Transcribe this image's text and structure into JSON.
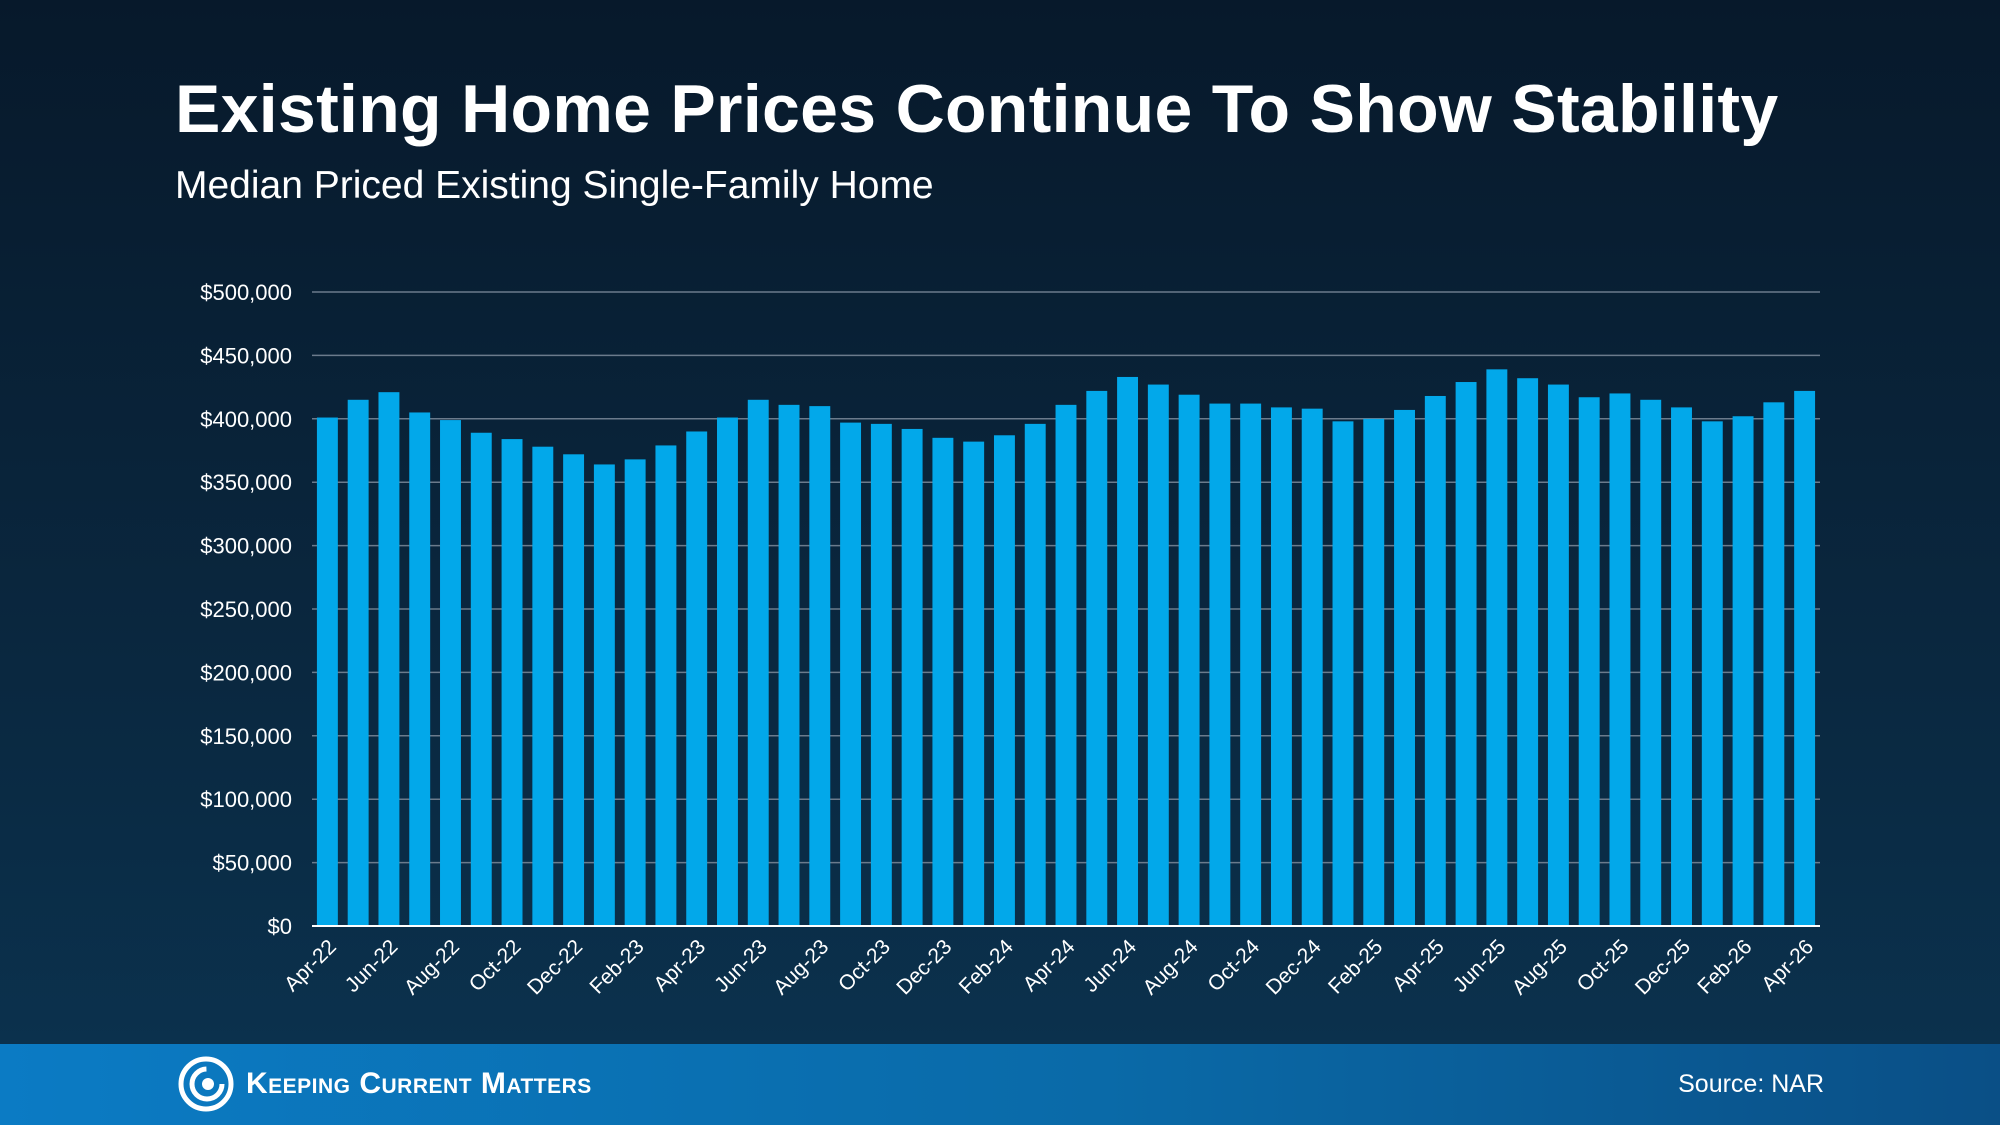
{
  "colors": {
    "bar": "#02a8ea",
    "grid": "#6b7b8c",
    "text": "#ffffff"
  },
  "footer": {
    "logo_text": "Keeping Current Matters",
    "source": "Source: NAR"
  },
  "chart_data": {
    "type": "bar",
    "title": "Existing Home Prices Continue To Show Stability",
    "subtitle": "Median Priced Existing Single-Family Home",
    "xlabel": "",
    "ylabel": "",
    "ylim": [
      0,
      500000
    ],
    "yticks": [
      0,
      50000,
      100000,
      150000,
      200000,
      250000,
      300000,
      350000,
      400000,
      450000,
      500000
    ],
    "ytick_labels": [
      "$0",
      "$50,000",
      "$100,000",
      "$150,000",
      "$200,000",
      "$250,000",
      "$300,000",
      "$350,000",
      "$400,000",
      "$450,000",
      "$500,000"
    ],
    "grid": true,
    "categories": [
      "Apr-22",
      "May-22",
      "Jun-22",
      "Jul-22",
      "Aug-22",
      "Sep-22",
      "Oct-22",
      "Nov-22",
      "Dec-22",
      "Jan-23",
      "Feb-23",
      "Mar-23",
      "Apr-23",
      "May-23",
      "Jun-23",
      "Jul-23",
      "Aug-23",
      "Sep-23",
      "Oct-23",
      "Nov-23",
      "Dec-23",
      "Jan-24",
      "Feb-24",
      "Mar-24",
      "Apr-24",
      "May-24",
      "Jun-24",
      "Jul-24",
      "Aug-24",
      "Sep-24",
      "Oct-24",
      "Nov-24",
      "Dec-24",
      "Jan-25",
      "Feb-25",
      "Mar-25",
      "Apr-25",
      "May-25",
      "Jun-25",
      "Jul-25",
      "Aug-25",
      "Sep-25",
      "Oct-25",
      "Nov-25",
      "Dec-25",
      "Jan-26",
      "Feb-26",
      "Mar-26",
      "Apr-26"
    ],
    "x_tick_labels": [
      "Apr-22",
      "",
      "Jun-22",
      "",
      "Aug-22",
      "",
      "Oct-22",
      "",
      "Dec-22",
      "",
      "Feb-23",
      "",
      "Apr-23",
      "",
      "Jun-23",
      "",
      "Aug-23",
      "",
      "Oct-23",
      "",
      "Dec-23",
      "",
      "Feb-24",
      "",
      "Apr-24",
      "",
      "Jun-24",
      "",
      "Aug-24",
      "",
      "Oct-24",
      "",
      "Dec-24",
      "",
      "Feb-25",
      "",
      "Apr-25",
      "",
      "Jun-25",
      "",
      "Aug-25",
      "",
      "Oct-25",
      "",
      "Dec-25",
      "",
      "Feb-26",
      "",
      "Apr-26"
    ],
    "values": [
      401000,
      415000,
      421000,
      405000,
      399000,
      389000,
      384000,
      378000,
      372000,
      364000,
      368000,
      379000,
      390000,
      401000,
      415000,
      411000,
      410000,
      397000,
      396000,
      392000,
      385000,
      382000,
      387000,
      396000,
      411000,
      422000,
      433000,
      427000,
      419000,
      412000,
      412000,
      409000,
      408000,
      398000,
      400000,
      407000,
      418000,
      429000,
      439000,
      432000,
      427000,
      417000,
      420000,
      415000,
      409000,
      398000,
      402000,
      413000,
      422000
    ]
  }
}
